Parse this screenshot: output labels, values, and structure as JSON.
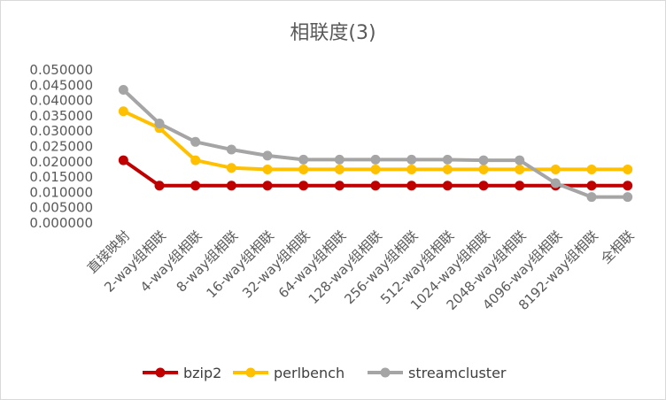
{
  "chart_data": {
    "type": "line",
    "title": "相联度(3)",
    "xlabel": "",
    "ylabel": "",
    "categories": [
      "直接映射",
      "2-way组相联",
      "4-way组相联",
      "8-way组相联",
      "16-way组相联",
      "32-way组相联",
      "64-way组相联",
      "128-way组相联",
      "256-way组相联",
      "512-way组相联",
      "1024-way组相联",
      "2048-way组相联",
      "4096-way组相联",
      "8192-way组相联",
      "全相联"
    ],
    "ylim": [
      0,
      0.05
    ],
    "yticks": [
      "0.000000",
      "0.005000",
      "0.010000",
      "0.015000",
      "0.020000",
      "0.025000",
      "0.030000",
      "0.035000",
      "0.040000",
      "0.045000",
      "0.050000"
    ],
    "grid": false,
    "legend": "bottom",
    "series": [
      {
        "name": "bzip2",
        "color": "#c00000",
        "values": [
          0.0205,
          0.0122,
          0.0122,
          0.0122,
          0.0122,
          0.0122,
          0.0122,
          0.0122,
          0.0122,
          0.0122,
          0.0122,
          0.0122,
          0.0122,
          0.0122,
          0.0122
        ]
      },
      {
        "name": "perlbench",
        "color": "#ffc000",
        "values": [
          0.0365,
          0.031,
          0.0205,
          0.018,
          0.0175,
          0.0175,
          0.0175,
          0.0175,
          0.0175,
          0.0175,
          0.0175,
          0.0175,
          0.0175,
          0.0175,
          0.0175
        ]
      },
      {
        "name": "streamcluster",
        "color": "#a5a5a5",
        "values": [
          0.0435,
          0.0325,
          0.0265,
          0.024,
          0.022,
          0.0207,
          0.0207,
          0.0207,
          0.0207,
          0.0207,
          0.0205,
          0.0205,
          0.013,
          0.0085,
          0.0085
        ]
      }
    ]
  }
}
